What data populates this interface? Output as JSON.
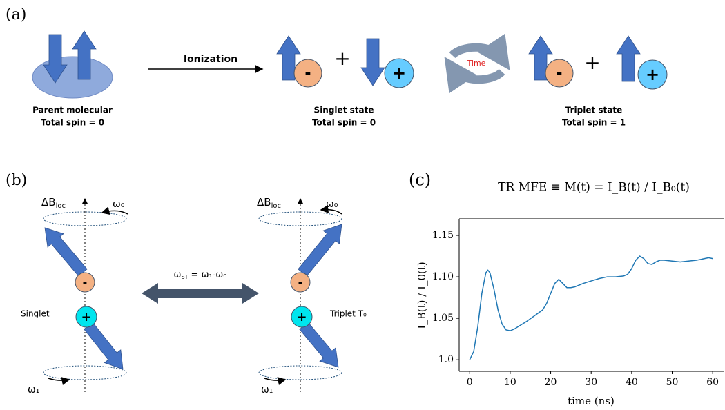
{
  "panel_a": {
    "label": "(a)",
    "ionization": "Ionization",
    "time": "Time",
    "minus": "-",
    "plus": "+",
    "parent": {
      "name": "Parent molecular",
      "spin": "Total spin = 0"
    },
    "singlet": {
      "name": "Singlet state",
      "spin": "Total spin = 0"
    },
    "triplet": {
      "name": "Triplet state",
      "spin": "Total spin = 1"
    }
  },
  "panel_b": {
    "label": "(b)",
    "delta_b": "ΔB",
    "loc": "loc",
    "omega0": "ω₀",
    "omega1": "ω₁",
    "singlet": "Singlet",
    "triplet": "Triplet T₀",
    "omega": "ω",
    "st": "ST",
    "relation": " = ω₁-ω₀"
  },
  "panel_c": {
    "label": "(c)"
  },
  "chart_data": {
    "type": "line",
    "title": "TR MFE ≡ M(t) = I_B(t) / I_B₀(t)",
    "x_label": "time (ns)",
    "y_label": "I_B(t) / I_0(t)",
    "color": "#1f77b4",
    "x": [
      0,
      1,
      2,
      3,
      4,
      4.5,
      5,
      6,
      7,
      8,
      9,
      10,
      11,
      12,
      14,
      16,
      18,
      19,
      20,
      21,
      22,
      23,
      24,
      25,
      26,
      28,
      30,
      32,
      34,
      36,
      38,
      39,
      40,
      41,
      42,
      43,
      44,
      45,
      46,
      47,
      48,
      50,
      52,
      54,
      56,
      58,
      59,
      60
    ],
    "values": [
      1.0,
      1.01,
      1.04,
      1.08,
      1.105,
      1.108,
      1.105,
      1.085,
      1.06,
      1.043,
      1.036,
      1.035,
      1.037,
      1.04,
      1.046,
      1.053,
      1.06,
      1.068,
      1.08,
      1.092,
      1.097,
      1.092,
      1.087,
      1.087,
      1.088,
      1.092,
      1.095,
      1.098,
      1.1,
      1.1,
      1.101,
      1.103,
      1.11,
      1.12,
      1.125,
      1.122,
      1.116,
      1.115,
      1.118,
      1.12,
      1.12,
      1.119,
      1.118,
      1.119,
      1.12,
      1.122,
      1.123,
      1.122
    ],
    "xlim": [
      -2.6,
      62.7
    ],
    "ylim": [
      0.986,
      1.17
    ],
    "xticks": [
      0,
      10,
      20,
      30,
      40,
      50,
      60
    ],
    "yticks": [
      {
        "value": 1.0,
        "label": "1.0"
      },
      1.05,
      {
        "value": 1.1,
        "label": "1.10"
      },
      1.15
    ]
  }
}
